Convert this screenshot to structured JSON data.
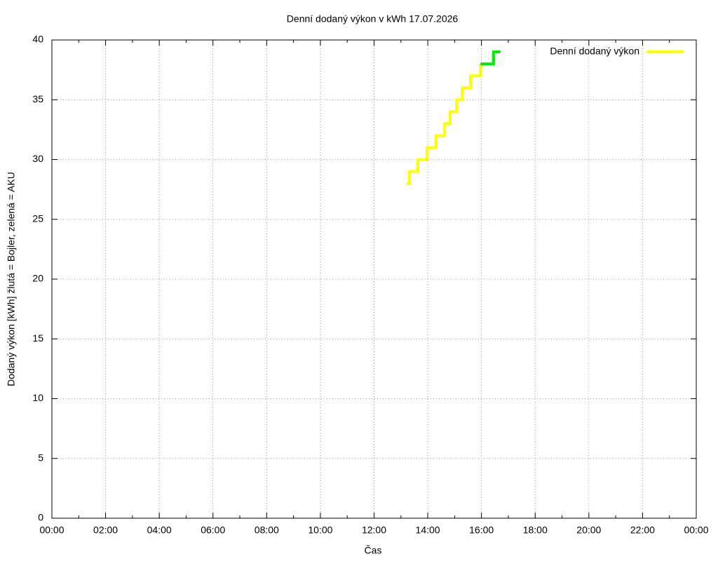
{
  "chart_data": {
    "type": "step",
    "title": "Denní dodaný výkon v kWh 17.07.2026",
    "xlabel": "Čas",
    "ylabel": "Dodaný výkon [kWh]  žlutá = Bojler, zelená = AKU",
    "series": [
      {
        "name": "Denní dodaný výkon",
        "color": "#ffff00",
        "x": [
          13.21,
          13.32,
          13.63,
          13.97,
          14.31,
          14.63,
          14.83,
          15.07,
          15.28,
          15.59,
          15.96
        ],
        "values": [
          28,
          29,
          30,
          31,
          32,
          33,
          34,
          35,
          36,
          37,
          38
        ]
      },
      {
        "color": "#00ee00",
        "x": [
          15.96,
          16.45,
          16.71
        ],
        "values": [
          38,
          39,
          39
        ]
      }
    ],
    "xlim": [
      0,
      24
    ],
    "xticks": [
      {
        "value": 0,
        "label": "00:00"
      },
      {
        "value": 2,
        "label": "02:00"
      },
      {
        "value": 4,
        "label": "04:00"
      },
      {
        "value": 6,
        "label": "06:00"
      },
      {
        "value": 8,
        "label": "08:00"
      },
      {
        "value": 10,
        "label": "10:00"
      },
      {
        "value": 12,
        "label": "12:00"
      },
      {
        "value": 14,
        "label": "14:00"
      },
      {
        "value": 16,
        "label": "16:00"
      },
      {
        "value": 18,
        "label": "18:00"
      },
      {
        "value": 20,
        "label": "20:00"
      },
      {
        "value": 22,
        "label": "22:00"
      },
      {
        "value": 24,
        "label": "00:00"
      }
    ],
    "ylim": [
      0,
      40
    ],
    "yticks": [
      0,
      5,
      10,
      15,
      20,
      25,
      30,
      35,
      40
    ],
    "grid": true,
    "legend": "top-right"
  }
}
